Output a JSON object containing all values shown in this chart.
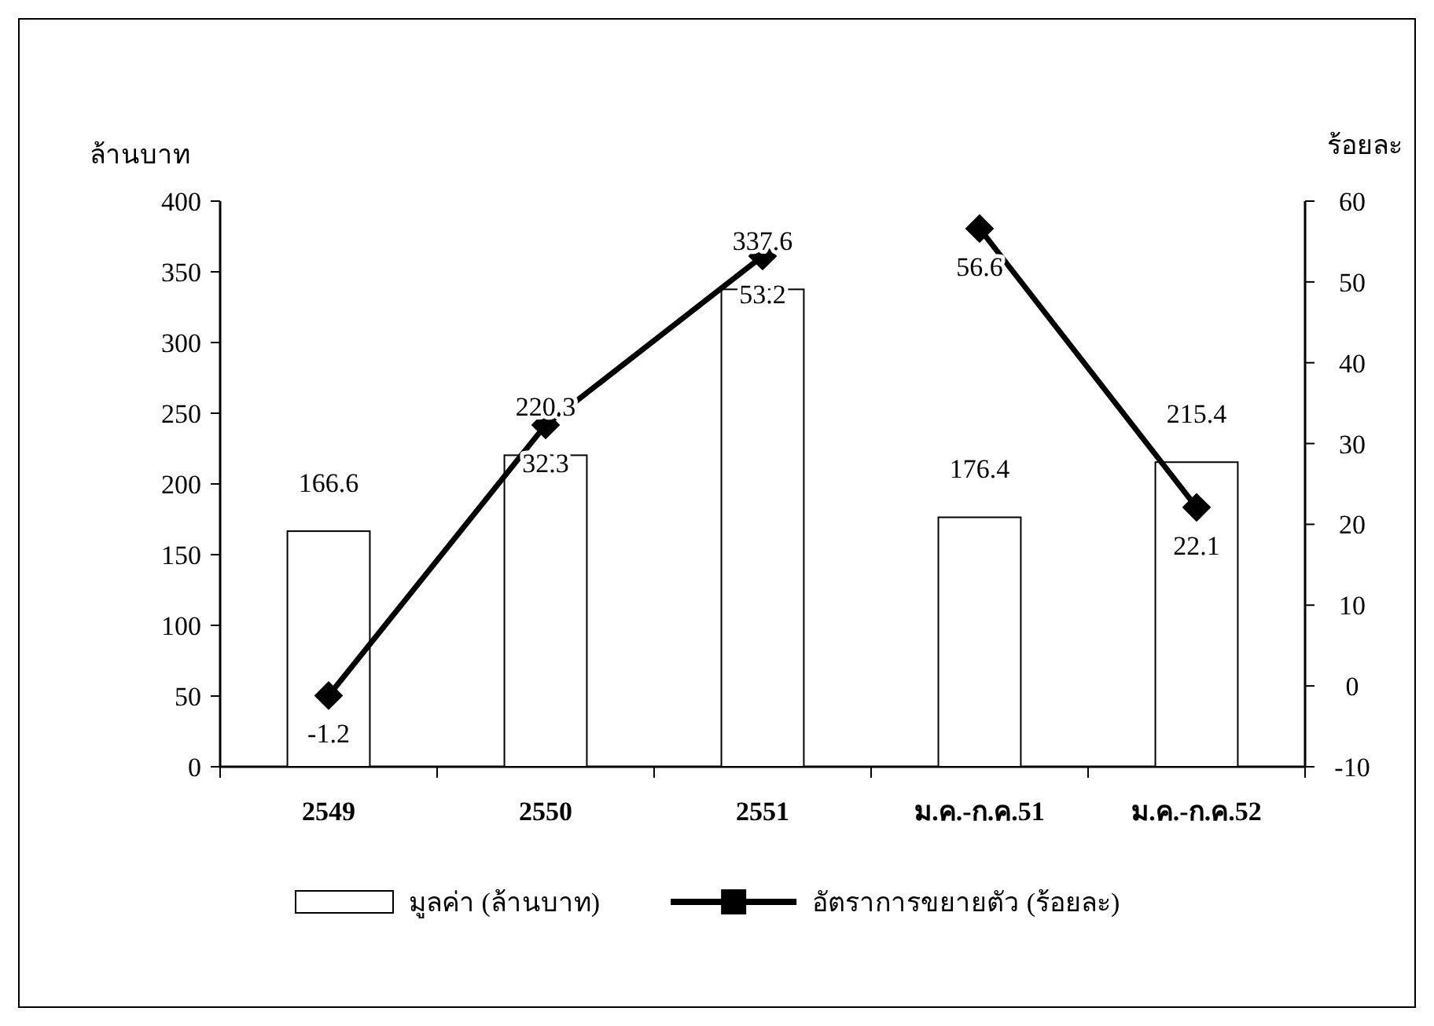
{
  "chart_data": {
    "type": "bar",
    "ylabel": "ล้านบาท",
    "y2label": "ร้อยละ",
    "categories": [
      "2549",
      "2550",
      "2551",
      "ม.ค.-ก.ค.51",
      "ม.ค.-ก.ค.52"
    ],
    "series": [
      {
        "name": "มูลค่า (ล้านบาท)",
        "color": "#ffffff",
        "values": [
          166.6,
          220.3,
          337.6,
          176.4,
          215.4
        ]
      },
      {
        "name": "อัตราการขยายตัว (ร้อยละ)",
        "type": "line",
        "axis": "y2",
        "color": "#000000",
        "values": [
          -1.2,
          32.3,
          53.2,
          null,
          null
        ]
      },
      {
        "type": "line",
        "axis": "y2",
        "color": "#000000",
        "values": [
          null,
          null,
          null,
          56.6,
          22.1
        ]
      }
    ],
    "ylim": [
      0,
      400
    ],
    "yticks": [
      0,
      50,
      100,
      150,
      200,
      250,
      300,
      350,
      400
    ],
    "y2lim": [
      -10,
      60
    ],
    "y2ticks": [
      -10,
      0,
      10,
      20,
      30,
      40,
      50,
      60
    ],
    "data_labels": true,
    "marker": "diamond",
    "legend": "bottom"
  }
}
